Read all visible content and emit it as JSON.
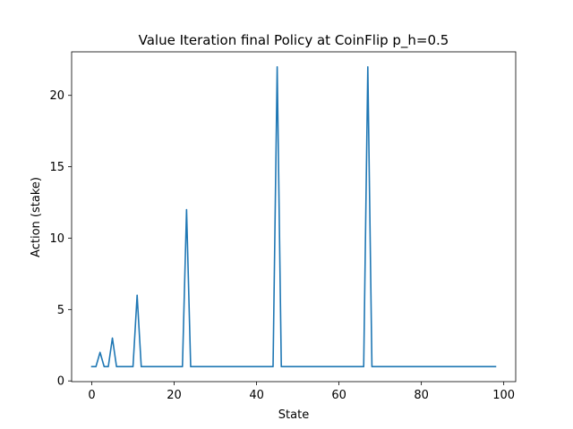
{
  "chart_data": {
    "type": "line",
    "title": "Value Iteration final Policy at CoinFlip p_h=0.5",
    "xlabel": "State",
    "ylabel": "Action (stake)",
    "xlim": [
      -4.9,
      102.9
    ],
    "ylim": [
      -0.05,
      23.05
    ],
    "xticks": [
      0,
      20,
      40,
      60,
      80,
      100
    ],
    "yticks": [
      0,
      5,
      10,
      15,
      20
    ],
    "grid": false,
    "legend": "none",
    "series": [
      {
        "color": "#1f77b4",
        "x": [
          0,
          1,
          2,
          3,
          4,
          5,
          6,
          7,
          8,
          9,
          10,
          11,
          12,
          13,
          14,
          15,
          16,
          17,
          18,
          19,
          20,
          21,
          22,
          23,
          24,
          25,
          26,
          27,
          28,
          29,
          30,
          31,
          32,
          33,
          34,
          35,
          36,
          37,
          38,
          39,
          40,
          41,
          42,
          43,
          44,
          45,
          46,
          47,
          48,
          49,
          50,
          51,
          52,
          53,
          54,
          55,
          56,
          57,
          58,
          59,
          60,
          61,
          62,
          63,
          64,
          65,
          66,
          67,
          68,
          69,
          70,
          71,
          72,
          73,
          74,
          75,
          76,
          77,
          78,
          79,
          80,
          81,
          82,
          83,
          84,
          85,
          86,
          87,
          88,
          89,
          90,
          91,
          92,
          93,
          94,
          95,
          96,
          97,
          98
        ],
        "y": [
          1,
          1,
          2,
          1,
          1,
          3,
          1,
          1,
          1,
          1,
          1,
          6,
          1,
          1,
          1,
          1,
          1,
          1,
          1,
          1,
          1,
          1,
          1,
          12,
          1,
          1,
          1,
          1,
          1,
          1,
          1,
          1,
          1,
          1,
          1,
          1,
          1,
          1,
          1,
          1,
          1,
          1,
          1,
          1,
          1,
          22,
          1,
          1,
          1,
          1,
          1,
          1,
          1,
          1,
          1,
          1,
          1,
          1,
          1,
          1,
          1,
          1,
          1,
          1,
          1,
          1,
          1,
          22,
          1,
          1,
          1,
          1,
          1,
          1,
          1,
          1,
          1,
          1,
          1,
          1,
          1,
          1,
          1,
          1,
          1,
          1,
          1,
          1,
          1,
          1,
          1,
          1,
          1,
          1,
          1,
          1,
          1,
          1,
          1
        ]
      }
    ]
  }
}
